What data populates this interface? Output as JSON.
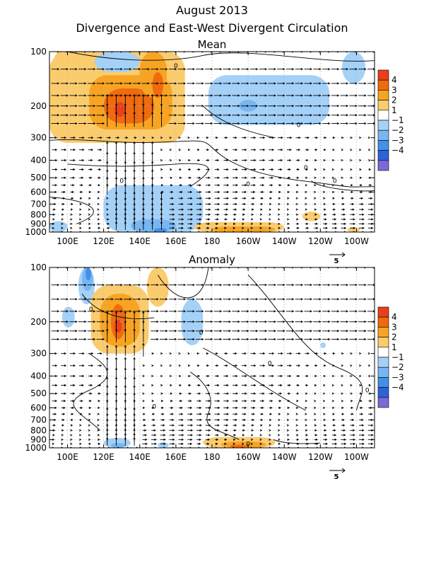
{
  "header": {
    "title": "August 2013",
    "subtitle": "Divergence and East-West Divergent Circulation"
  },
  "colorbar": {
    "levels": [
      "4",
      "3",
      "2",
      "1",
      "−1",
      "−2",
      "−3",
      "−4"
    ],
    "colors": [
      "#e8401a",
      "#f06a0f",
      "#f8a423",
      "#fbcc6e",
      "#ffffff",
      "#a4d1f8",
      "#76b7f3",
      "#4490e8",
      "#2c63d8",
      "#7d68d8"
    ],
    "positive_colors": [
      "#fbcc6e",
      "#f8a423",
      "#f06a0f",
      "#e8401a"
    ],
    "negative_colors": [
      "#a4d1f8",
      "#76b7f3",
      "#4490e8",
      "#2c63d8"
    ]
  },
  "reference_vector": {
    "label": "5"
  },
  "chart_data": [
    {
      "type": "heatmap",
      "title": "Mean",
      "xaxis": {
        "ticks": [
          "100E",
          "120E",
          "140E",
          "160E",
          "180",
          "160W",
          "140W",
          "120W",
          "100W"
        ],
        "positions": [
          100,
          120,
          140,
          160,
          180,
          200,
          220,
          240,
          260
        ],
        "range": [
          90,
          270
        ]
      },
      "yaxis": {
        "ticks": [
          "100",
          "200",
          "300",
          "400",
          "500",
          "600",
          "700",
          "800",
          "900",
          "1000"
        ],
        "scale": "log",
        "range": [
          100,
          1000
        ]
      },
      "contour_label": "0",
      "divergence_regions": [
        {
          "level": 1,
          "lon": [
            90,
            165
          ],
          "p": [
            100,
            320
          ]
        },
        {
          "level": 2,
          "lon": [
            112,
            158
          ],
          "p": [
            135,
            270
          ]
        },
        {
          "level": 3,
          "lon": [
            120,
            148
          ],
          "p": [
            160,
            250
          ]
        },
        {
          "level": 4,
          "lon": [
            126,
            132
          ],
          "p": [
            190,
            230
          ]
        },
        {
          "level": 1,
          "lon": [
            92,
            100
          ],
          "p": [
            100,
            140
          ]
        },
        {
          "level": 2,
          "lon": [
            140,
            155
          ],
          "p": [
            100,
            180
          ]
        },
        {
          "level": 3,
          "lon": [
            147,
            153
          ],
          "p": [
            130,
            180
          ]
        },
        {
          "level": -1,
          "lon": [
            178,
            245
          ],
          "p": [
            135,
            255
          ]
        },
        {
          "level": -2,
          "lon": [
            195,
            205
          ],
          "p": [
            185,
            215
          ]
        },
        {
          "level": -1,
          "lon": [
            115,
            140
          ],
          "p": [
            100,
            130
          ]
        },
        {
          "level": -1,
          "lon": [
            252,
            265
          ],
          "p": [
            100,
            150
          ]
        },
        {
          "level": -1,
          "lon": [
            120,
            175
          ],
          "p": [
            550,
            1000
          ]
        },
        {
          "level": -2,
          "lon": [
            135,
            160
          ],
          "p": [
            850,
            1000
          ]
        },
        {
          "level": -3,
          "lon": [
            148,
            155
          ],
          "p": [
            950,
            1000
          ]
        },
        {
          "level": -1,
          "lon": [
            90,
            100
          ],
          "p": [
            870,
            1000
          ]
        },
        {
          "level": 1,
          "lon": [
            170,
            220
          ],
          "p": [
            880,
            1000
          ]
        },
        {
          "level": 2,
          "lon": [
            180,
            215
          ],
          "p": [
            930,
            1000
          ]
        },
        {
          "level": 1,
          "lon": [
            230,
            240
          ],
          "p": [
            770,
            870
          ]
        },
        {
          "level": 1,
          "lon": [
            255,
            262
          ],
          "p": [
            940,
            1000
          ]
        }
      ],
      "arrow_magnitude": [
        {
          "lon": [
            118,
            152
          ],
          "p": [
            200,
            280
          ],
          "u": 0,
          "w": 1.0
        },
        {
          "lon": [
            122,
            148
          ],
          "p": [
            330,
            600
          ],
          "u": 0,
          "w": 0.7
        },
        {
          "lon": [
            125,
            155
          ],
          "p": [
            620,
            950
          ],
          "u": 0,
          "w": 0.55
        }
      ]
    },
    {
      "type": "heatmap",
      "title": "Anomaly",
      "xaxis": {
        "ticks": [
          "100E",
          "120E",
          "140E",
          "160E",
          "180",
          "160W",
          "140W",
          "120W",
          "100W"
        ],
        "positions": [
          100,
          120,
          140,
          160,
          180,
          200,
          220,
          240,
          260
        ],
        "range": [
          90,
          270
        ]
      },
      "yaxis": {
        "ticks": [
          "100",
          "200",
          "300",
          "400",
          "500",
          "600",
          "700",
          "800",
          "900",
          "1000"
        ],
        "scale": "log",
        "range": [
          100,
          1000
        ]
      },
      "contour_label": "0",
      "divergence_regions": [
        {
          "level": -1,
          "lon": [
            106,
            115
          ],
          "p": [
            100,
            160
          ]
        },
        {
          "level": -2,
          "lon": [
            108,
            114
          ],
          "p": [
            100,
            135
          ]
        },
        {
          "level": -3,
          "lon": [
            110,
            113
          ],
          "p": [
            100,
            118
          ]
        },
        {
          "level": -1,
          "lon": [
            97,
            104
          ],
          "p": [
            165,
            215
          ]
        },
        {
          "level": 1,
          "lon": [
            113,
            145
          ],
          "p": [
            125,
            300
          ]
        },
        {
          "level": 2,
          "lon": [
            118,
            140
          ],
          "p": [
            140,
            275
          ]
        },
        {
          "level": 3,
          "lon": [
            124,
            132
          ],
          "p": [
            160,
            250
          ]
        },
        {
          "level": 4,
          "lon": [
            126,
            130
          ],
          "p": [
            195,
            230
          ]
        },
        {
          "level": 1,
          "lon": [
            144,
            156
          ],
          "p": [
            100,
            165
          ]
        },
        {
          "level": -1,
          "lon": [
            163,
            175
          ],
          "p": [
            150,
            270
          ]
        },
        {
          "level": -1,
          "lon": [
            240,
            243
          ],
          "p": [
            260,
            280
          ]
        },
        {
          "level": -1,
          "lon": [
            120,
            135
          ],
          "p": [
            880,
            1000
          ]
        },
        {
          "level": -2,
          "lon": [
            124,
            132
          ],
          "p": [
            940,
            1000
          ]
        },
        {
          "level": -1,
          "lon": [
            150,
            156
          ],
          "p": [
            930,
            1000
          ]
        },
        {
          "level": 1,
          "lon": [
            175,
            215
          ],
          "p": [
            870,
            1000
          ]
        },
        {
          "level": 2,
          "lon": [
            185,
            210
          ],
          "p": [
            920,
            1000
          ]
        },
        {
          "level": 3,
          "lon": [
            190,
            200
          ],
          "p": [
            960,
            1000
          ]
        }
      ],
      "arrow_magnitude": [
        {
          "lon": [
            120,
            142
          ],
          "p": [
            180,
            300
          ],
          "u": 0,
          "w": 0.9
        },
        {
          "lon": [
            122,
            138
          ],
          "p": [
            300,
            650
          ],
          "u": 0,
          "w": 0.7
        },
        {
          "lon": [
            122,
            138
          ],
          "p": [
            650,
            950
          ],
          "u": 0,
          "w": 0.55
        }
      ]
    }
  ]
}
